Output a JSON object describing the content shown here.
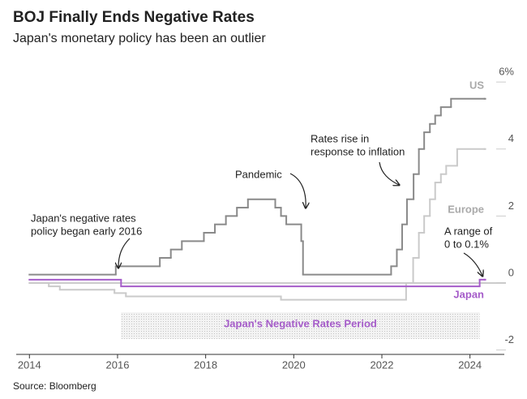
{
  "chart_data": {
    "type": "step",
    "title": "BOJ Finally Ends Negative Rates",
    "subtitle": "Japan's monetary policy has been an outlier",
    "source": "Source: Bloomberg",
    "xlim": [
      2013.7,
      2025
    ],
    "xticks": [
      2014,
      2016,
      2018,
      2020,
      2022,
      2024
    ],
    "ylim": [
      -2.1,
      6.5
    ],
    "yticks": [
      {
        "value": 6,
        "label": "6%"
      },
      4,
      2,
      0,
      -2
    ],
    "series": [
      {
        "name": "US",
        "color": "#8a8a8a",
        "x": [
          2014,
          2015.96,
          2016.96,
          2017.21,
          2017.46,
          2017.96,
          2018.21,
          2018.46,
          2018.71,
          2018.96,
          2019.58,
          2019.71,
          2019.83,
          2020.17,
          2020.21,
          2022.21,
          2022.34,
          2022.46,
          2022.57,
          2022.72,
          2022.84,
          2022.96,
          2023.09,
          2023.21,
          2023.34,
          2023.57,
          2024.33
        ],
        "values": [
          0.25,
          0.5,
          0.75,
          1.0,
          1.25,
          1.5,
          1.75,
          2.0,
          2.25,
          2.5,
          2.25,
          2.0,
          1.75,
          1.25,
          0.25,
          0.5,
          1.0,
          1.75,
          2.5,
          3.25,
          4.0,
          4.5,
          4.75,
          5.0,
          5.25,
          5.5,
          5.5
        ]
      },
      {
        "name": "Europe",
        "color": "#cacaca",
        "x": [
          2014,
          2014.44,
          2014.69,
          2015.93,
          2016.19,
          2019.71,
          2022.55,
          2022.71,
          2022.84,
          2022.96,
          2023.09,
          2023.21,
          2023.34,
          2023.46,
          2023.71,
          2024.33
        ],
        "values": [
          0,
          -0.1,
          -0.2,
          -0.3,
          -0.4,
          -0.5,
          0,
          0.75,
          1.5,
          2,
          2.5,
          3,
          3.25,
          3.5,
          4,
          4
        ]
      },
      {
        "name": "Japan",
        "color": "#a55cc9",
        "x": [
          2014,
          2016.08,
          2024.22,
          2024.33
        ],
        "values": [
          0.1,
          -0.1,
          0.1,
          0.1
        ]
      }
    ],
    "shaded_period": {
      "x": [
        2016.08,
        2024.22
      ],
      "label": "Japan's Negative Rates Period"
    },
    "annotations": [
      {
        "text": [
          "Pandemic"
        ]
      },
      {
        "text": [
          "Rates rise in",
          "response to inflation"
        ]
      },
      {
        "text": [
          "Japan's negative rates",
          "policy began early 2016"
        ]
      },
      {
        "text": [
          "A range of",
          "0 to 0.1%"
        ]
      }
    ]
  }
}
